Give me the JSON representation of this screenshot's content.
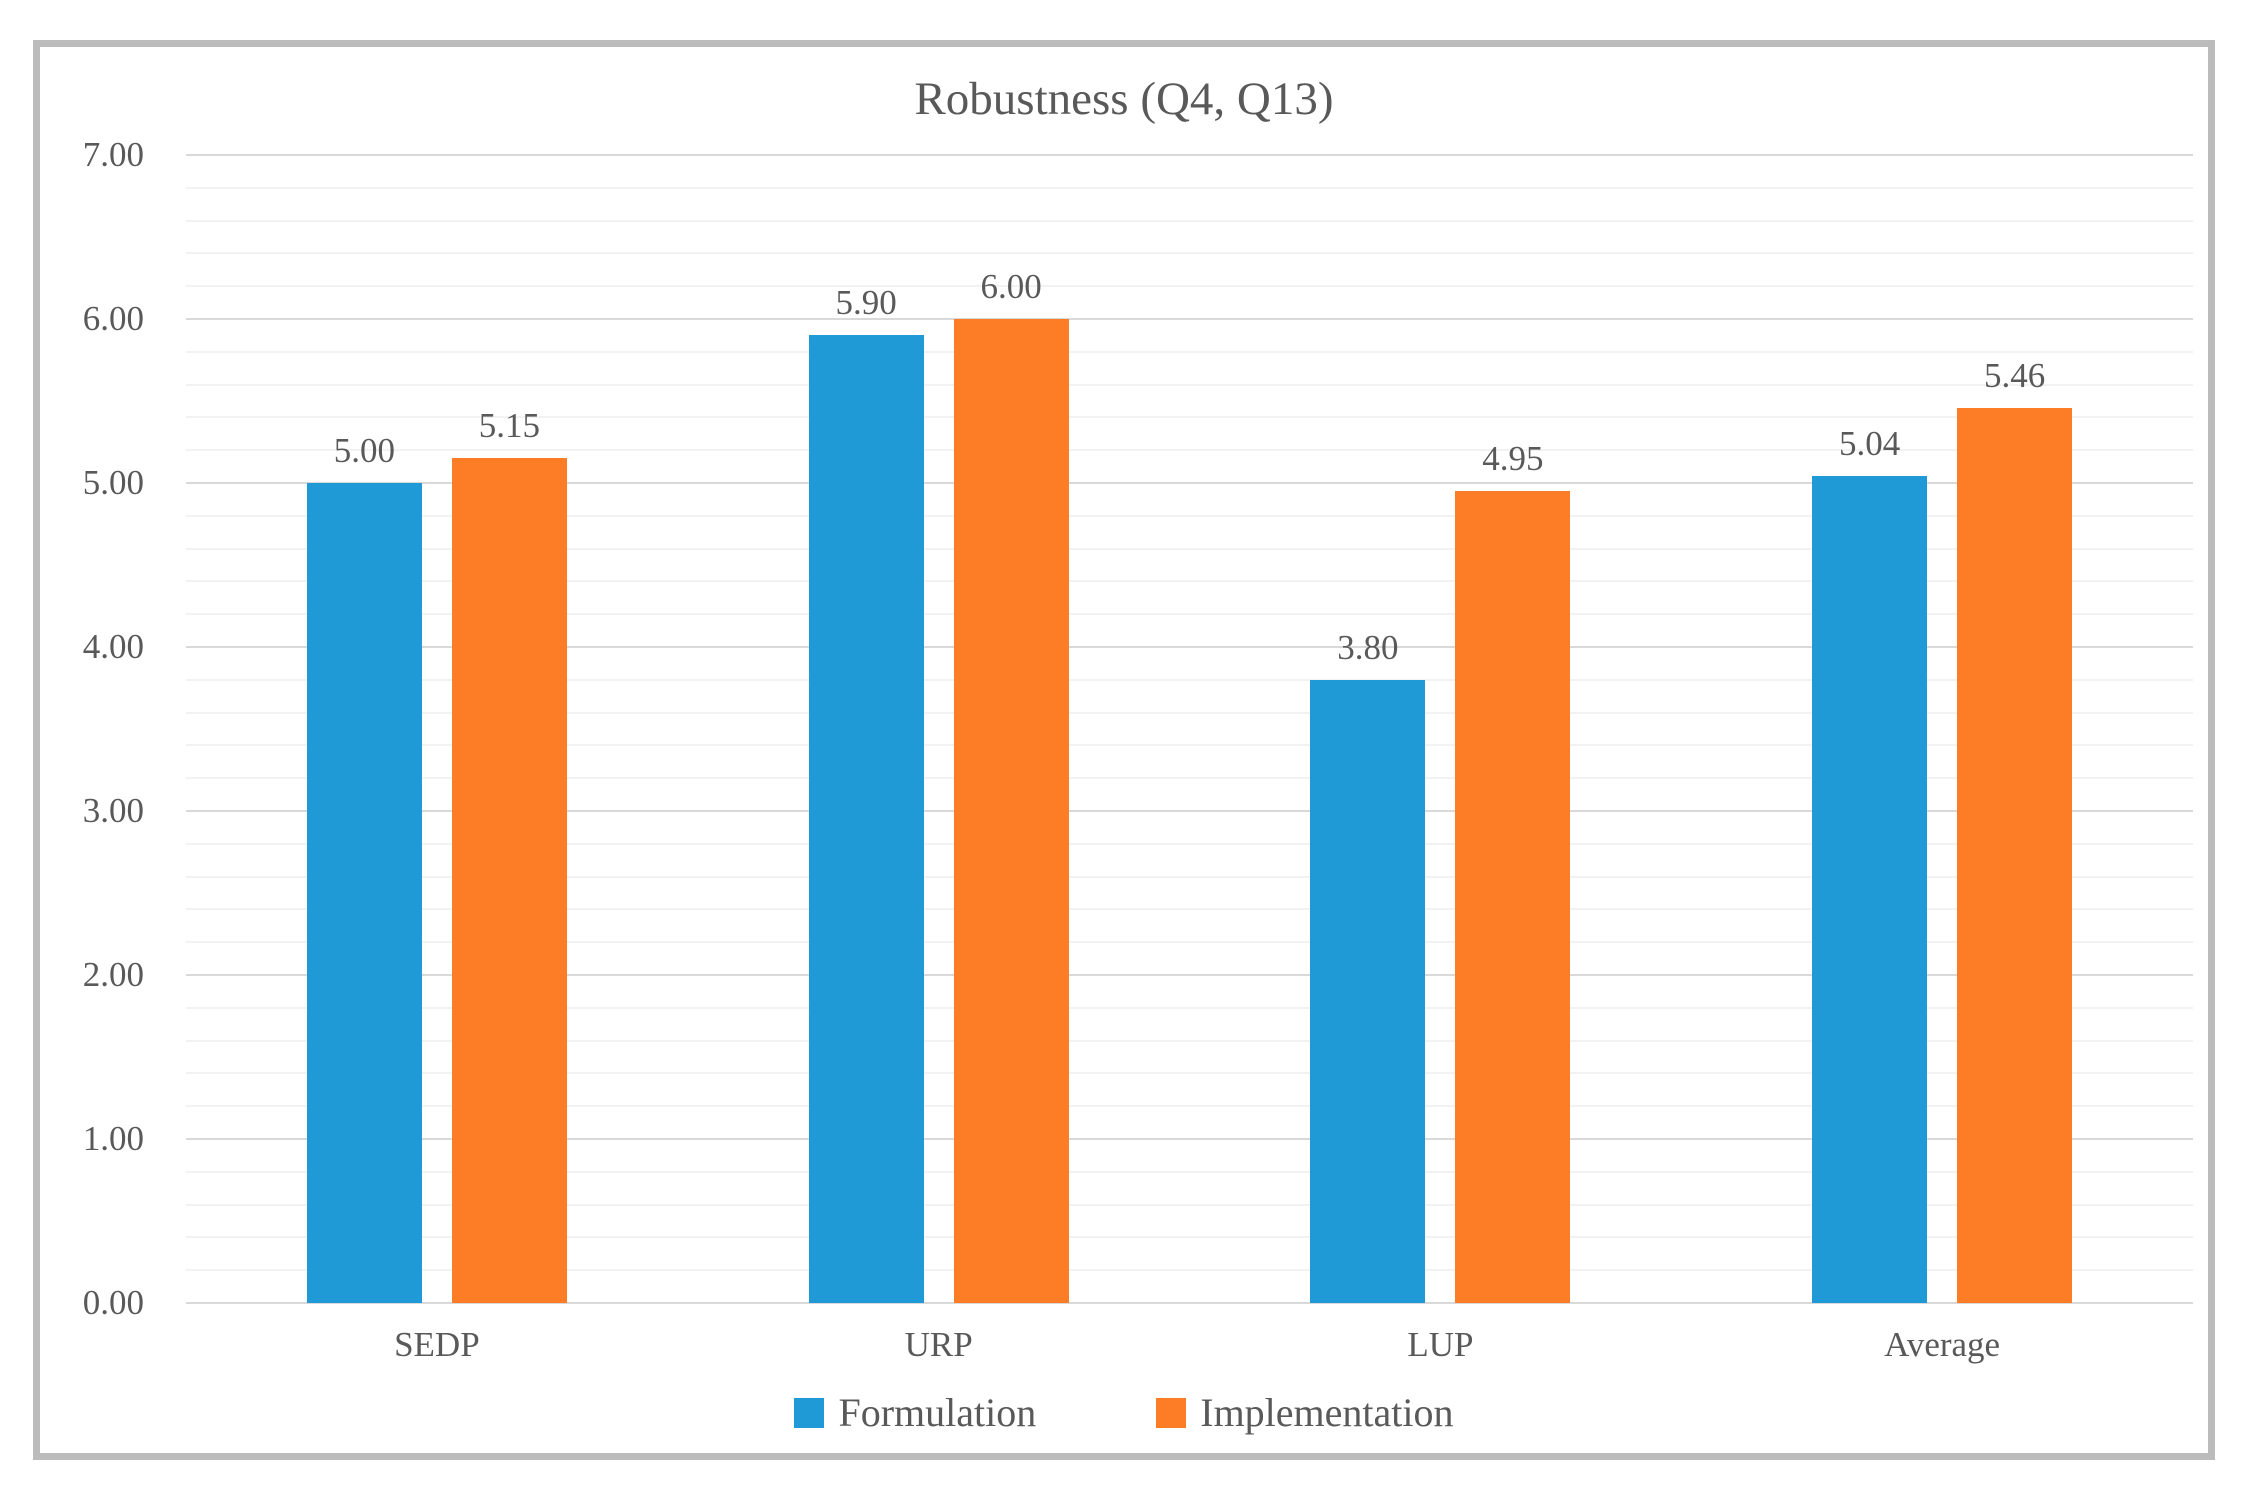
{
  "frame": {
    "border_color": "#BCBCBC",
    "background": "#FFFFFF"
  },
  "text_color": "#595959",
  "chart_data": {
    "type": "bar",
    "title": "Robustness (Q4, Q13)",
    "categories": [
      "SEDP",
      "URP",
      "LUP",
      "Average"
    ],
    "series": [
      {
        "name": "Formulation",
        "color": "#1F9AD7",
        "values": [
          5.0,
          5.9,
          3.8,
          5.04
        ],
        "labels": [
          "5.00",
          "5.90",
          "3.80",
          "5.04"
        ]
      },
      {
        "name": "Implementation",
        "color": "#FD7D26",
        "values": [
          5.15,
          6.0,
          4.95,
          5.46
        ],
        "labels": [
          "5.15",
          "6.00",
          "4.95",
          "5.46"
        ]
      }
    ],
    "ylim": [
      0,
      7
    ],
    "y_major_step": 1,
    "y_minor_step": 0.2,
    "y_tick_labels": [
      "0.00",
      "1.00",
      "2.00",
      "3.00",
      "4.00",
      "5.00",
      "6.00",
      "7.00"
    ],
    "grid": {
      "orientation": "horizontal",
      "major_color": "#D9D9D9",
      "minor_color": "#F2F2F2"
    },
    "legend_position": "bottom"
  }
}
